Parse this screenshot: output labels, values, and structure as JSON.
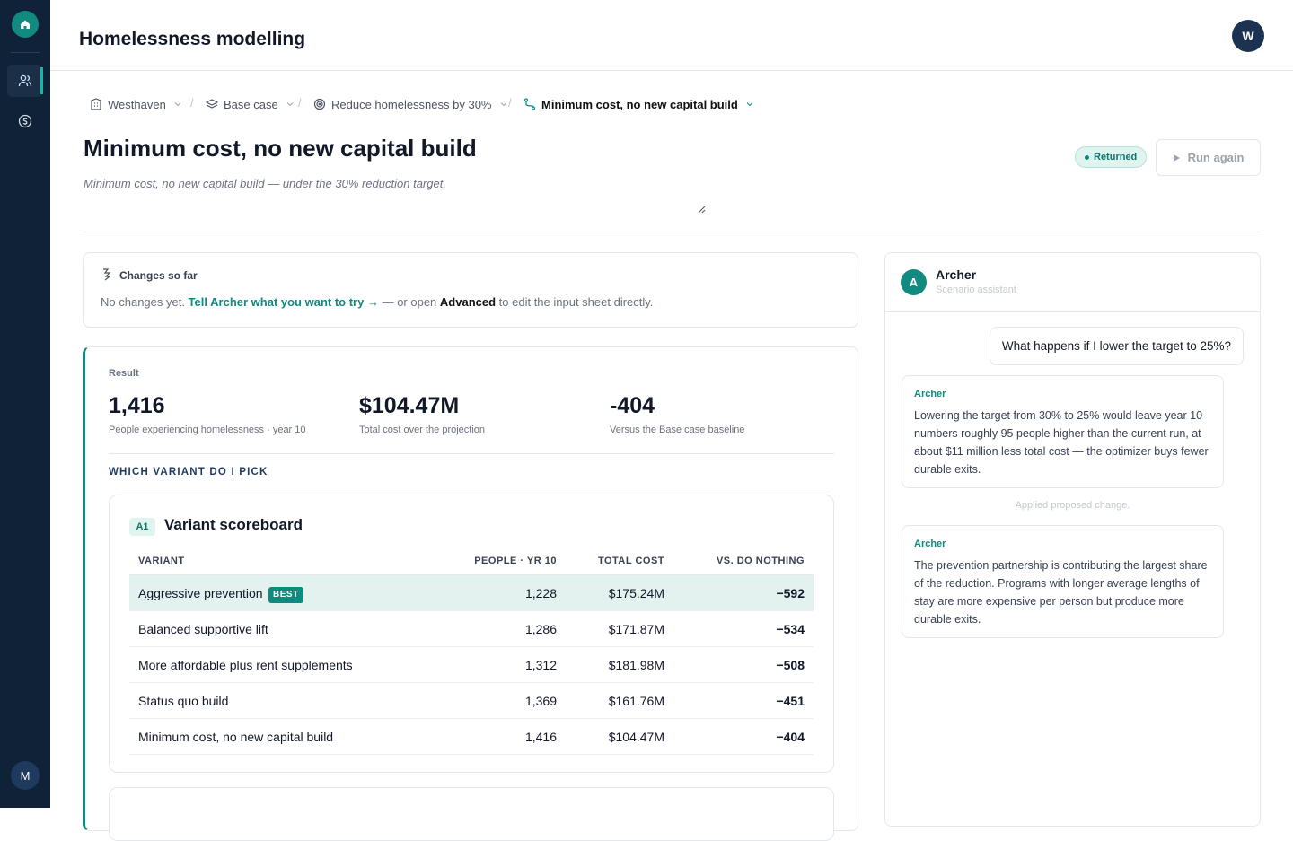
{
  "sidebar": {
    "avatar": "M"
  },
  "header": {
    "title": "Homelessness modelling",
    "avatar": "W"
  },
  "breadcrumbs": [
    "Westhaven",
    "Base case",
    "Reduce homelessness by 30%",
    "Minimum cost, no new capital build"
  ],
  "scenario": {
    "title": "Minimum cost, no new capital build",
    "description": "Minimum cost, no new capital build — under the 30% reduction target.",
    "status": "Returned",
    "action": "Run again"
  },
  "changes": {
    "title": "Changes so far",
    "text_before": "No changes yet.",
    "link": "Tell Archer what you want to try →",
    "text_middle": "— or open",
    "advanced": "Advanced",
    "text_after": "to edit the input sheet directly."
  },
  "result": {
    "label": "Result",
    "metrics": [
      {
        "value": "1,416",
        "caption": "People experiencing homelessness · year 10"
      },
      {
        "value": "$104.47M",
        "caption": "Total cost over the projection"
      },
      {
        "value": "-404",
        "caption": "Versus the Base case baseline"
      }
    ],
    "section": "WHICH VARIANT DO I PICK"
  },
  "scoreboard": {
    "badge": "A1",
    "title": "Variant scoreboard",
    "best": "BEST",
    "columns": [
      "VARIANT",
      "PEOPLE · YR 10",
      "TOTAL COST",
      "VS. DO NOTHING"
    ],
    "rows": [
      [
        "Aggressive prevention",
        "1,228",
        "$175.24M",
        "−592"
      ],
      [
        "Balanced supportive lift",
        "1,286",
        "$171.87M",
        "−534"
      ],
      [
        "More affordable plus rent supplements",
        "1,312",
        "$181.98M",
        "−508"
      ],
      [
        "Status quo build",
        "1,369",
        "$161.76M",
        "−451"
      ],
      [
        "Minimum cost, no new capital build",
        "1,416",
        "$104.47M",
        "−404"
      ]
    ]
  },
  "chat": {
    "avatar": "A",
    "name": "Archer",
    "subtitle": "Scenario assistant",
    "user_message": "What happens if I lower the target to 25%?",
    "replies": [
      {
        "author": "Archer",
        "text": "Lowering the target from 30% to 25% would leave year 10 numbers roughly 95 people higher than the current run, at about $11 million less total cost — the optimizer buys fewer durable exits."
      },
      {
        "author": "Archer",
        "text": "The prevention partnership is contributing the largest share of the reduction. Programs with longer average lengths of stay are more expensive per person but produce more durable exits."
      }
    ],
    "note": "Applied proposed change."
  }
}
